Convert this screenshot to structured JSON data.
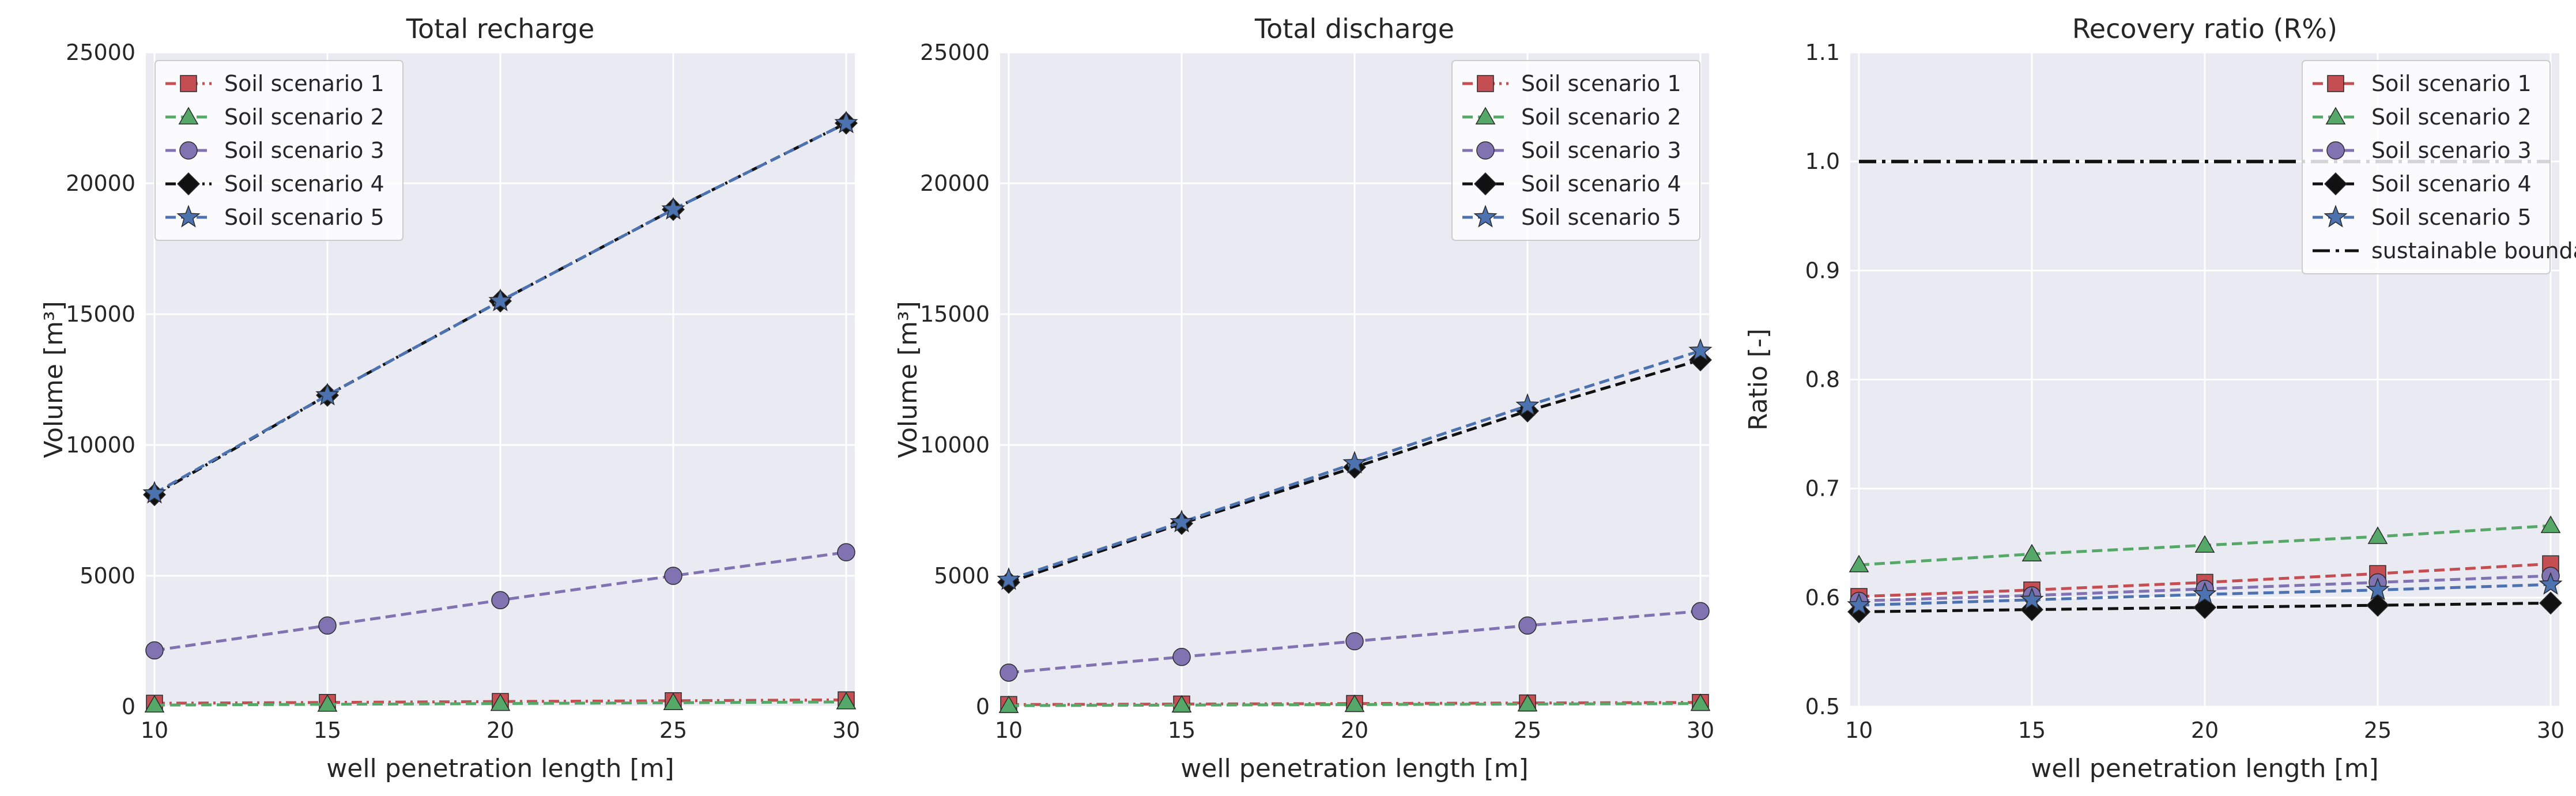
{
  "chart_data": [
    {
      "type": "line",
      "title": "Total recharge",
      "xlabel": "well penetration length [m]",
      "ylabel": "Volume [m³]",
      "x": [
        10,
        15,
        20,
        25,
        30
      ],
      "xticks": [
        "10",
        "15",
        "20",
        "25",
        "30"
      ],
      "xlim": [
        9.75,
        30.25
      ],
      "ylim": [
        0,
        25000
      ],
      "yticks": [
        "0",
        "5000",
        "10000",
        "15000",
        "20000",
        "25000"
      ],
      "grid": true,
      "legend_position": "top-left",
      "series": [
        {
          "name": "Soil scenario 1",
          "values": [
            130,
            160,
            195,
            225,
            260
          ],
          "color": "#C44E52",
          "marker": "square",
          "dash": "dashdot"
        },
        {
          "name": "Soil scenario 2",
          "values": [
            60,
            90,
            120,
            150,
            180
          ],
          "color": "#55A868",
          "marker": "triangle",
          "dash": "dashed"
        },
        {
          "name": "Soil scenario 3",
          "values": [
            2150,
            3100,
            4070,
            5000,
            5900
          ],
          "color": "#8172B2",
          "marker": "circle",
          "dash": "dashed"
        },
        {
          "name": "Soil scenario 4",
          "values": [
            8100,
            11900,
            15500,
            19000,
            22300
          ],
          "color": "#111111",
          "marker": "diamond",
          "dash": "dashdot"
        },
        {
          "name": "Soil scenario 5",
          "values": [
            8150,
            11900,
            15500,
            19000,
            22300
          ],
          "color": "#4C72B0",
          "marker": "star",
          "dash": "dashed"
        }
      ]
    },
    {
      "type": "line",
      "title": "Total discharge",
      "xlabel": "well penetration length [m]",
      "ylabel": "Volume [m³]",
      "x": [
        10,
        15,
        20,
        25,
        30
      ],
      "xticks": [
        "10",
        "15",
        "20",
        "25",
        "30"
      ],
      "xlim": [
        9.75,
        30.25
      ],
      "ylim": [
        0,
        25000
      ],
      "yticks": [
        "0",
        "5000",
        "10000",
        "15000",
        "20000",
        "25000"
      ],
      "grid": true,
      "legend_position": "top-right",
      "series": [
        {
          "name": "Soil scenario 1",
          "values": [
            80,
            100,
            120,
            140,
            160
          ],
          "color": "#C44E52",
          "marker": "square",
          "dash": "dashdot"
        },
        {
          "name": "Soil scenario 2",
          "values": [
            40,
            60,
            80,
            100,
            120
          ],
          "color": "#55A868",
          "marker": "triangle",
          "dash": "dashed"
        },
        {
          "name": "Soil scenario 3",
          "values": [
            1300,
            1900,
            2500,
            3100,
            3650
          ],
          "color": "#8172B2",
          "marker": "circle",
          "dash": "dashed"
        },
        {
          "name": "Soil scenario 4",
          "values": [
            4750,
            7000,
            9150,
            11300,
            13250
          ],
          "color": "#111111",
          "marker": "diamond",
          "dash": "dashed"
        },
        {
          "name": "Soil scenario 5",
          "values": [
            4850,
            7050,
            9300,
            11500,
            13600
          ],
          "color": "#4C72B0",
          "marker": "star",
          "dash": "dashed"
        }
      ]
    },
    {
      "type": "line",
      "title": "Recovery ratio (R%)",
      "xlabel": "well penetration length [m]",
      "ylabel": "Ratio [-]",
      "x": [
        10,
        15,
        20,
        25,
        30
      ],
      "xticks": [
        "10",
        "15",
        "20",
        "25",
        "30"
      ],
      "xlim": [
        9.75,
        30.25
      ],
      "ylim": [
        0.5,
        1.1
      ],
      "yticks": [
        "0.5",
        "0.6",
        "0.7",
        "0.8",
        "0.9",
        "1.0",
        "1.1"
      ],
      "grid": true,
      "legend_position": "top-right",
      "series": [
        {
          "name": "Soil scenario 1",
          "values": [
            0.601,
            0.607,
            0.614,
            0.622,
            0.631
          ],
          "color": "#C44E52",
          "marker": "square",
          "dash": "dashed"
        },
        {
          "name": "Soil scenario 2",
          "values": [
            0.63,
            0.64,
            0.648,
            0.656,
            0.666
          ],
          "color": "#55A868",
          "marker": "triangle",
          "dash": "dashed"
        },
        {
          "name": "Soil scenario 3",
          "values": [
            0.597,
            0.602,
            0.608,
            0.614,
            0.62
          ],
          "color": "#8172B2",
          "marker": "circle",
          "dash": "dashed"
        },
        {
          "name": "Soil scenario 4",
          "values": [
            0.587,
            0.589,
            0.591,
            0.593,
            0.595
          ],
          "color": "#111111",
          "marker": "diamond",
          "dash": "dashed"
        },
        {
          "name": "Soil scenario 5",
          "values": [
            0.593,
            0.598,
            0.603,
            0.607,
            0.612
          ],
          "color": "#4C72B0",
          "marker": "star",
          "dash": "dashed"
        },
        {
          "name": "sustainable boundary",
          "values": [
            1.0,
            1.0,
            1.0,
            1.0,
            1.0
          ],
          "color": "#111111",
          "marker": "none",
          "dash": "longdashdot"
        }
      ]
    }
  ]
}
